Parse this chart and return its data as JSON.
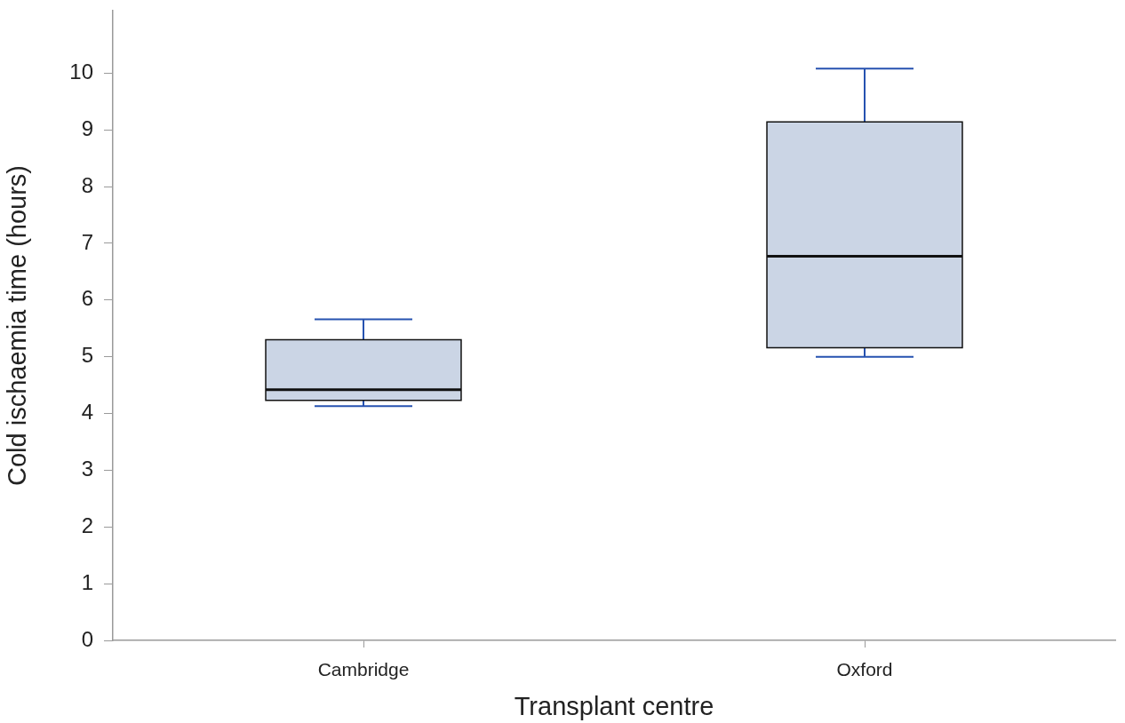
{
  "chart_data": {
    "type": "box",
    "xlabel": "Transplant centre",
    "ylabel": "Cold ischaemia time (hours)",
    "categories": [
      "Cambridge",
      "Oxford"
    ],
    "boxes": [
      {
        "low": 4.13,
        "q1": 4.23,
        "median": 4.42,
        "q3": 5.3,
        "high": 5.66
      },
      {
        "low": 5.0,
        "q1": 5.16,
        "median": 6.77,
        "q3": 9.14,
        "high": 10.08
      }
    ],
    "color": "#cbd5e5",
    "ylim": [
      0,
      11.1
    ],
    "yticks": [
      0,
      1,
      2,
      3,
      4,
      5,
      6,
      7,
      8,
      9,
      10
    ],
    "grid": false,
    "legend": false
  }
}
